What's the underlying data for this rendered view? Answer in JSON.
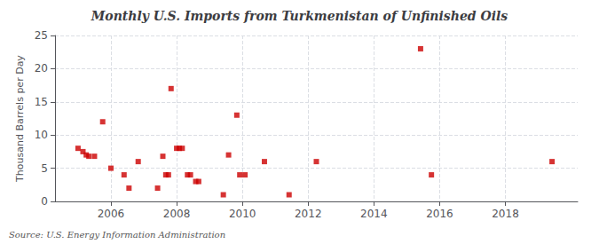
{
  "chart_data": {
    "type": "scatter",
    "title": "Monthly U.S. Imports from Turkmenistan of Unfinished Oils",
    "ylabel": "Thousand Barrels per Day",
    "annotation": "Source: U.S. Energy Information Administration",
    "x": [
      2005.0,
      2005.15,
      2005.25,
      2005.33,
      2005.5,
      2005.75,
      2006.0,
      2006.4,
      2006.55,
      2006.83,
      2007.42,
      2007.58,
      2007.67,
      2007.75,
      2007.83,
      2008.0,
      2008.08,
      2008.17,
      2008.33,
      2008.42,
      2008.58,
      2008.67,
      2009.42,
      2009.58,
      2009.83,
      2009.92,
      2010.08,
      2010.67,
      2011.42,
      2012.25,
      2015.42,
      2015.75,
      2019.42
    ],
    "values": [
      8.0,
      7.5,
      7.0,
      6.8,
      6.8,
      12.0,
      5.0,
      4.0,
      2.0,
      6.0,
      2.0,
      6.8,
      4.0,
      4.0,
      17.0,
      8.0,
      8.0,
      8.0,
      4.0,
      4.0,
      3.0,
      3.0,
      1.0,
      7.0,
      13.0,
      4.0,
      4.0,
      6.0,
      1.0,
      6.0,
      23.0,
      4.0,
      6.0
    ],
    "color": "#cc0000",
    "marker": "square",
    "xlim": [
      2004.3,
      2020.2
    ],
    "xticks": [
      2006,
      2008,
      2010,
      2012,
      2014,
      2016,
      2018
    ],
    "ylim": [
      0,
      25
    ],
    "yticks": [
      0,
      5,
      10,
      15,
      20,
      25
    ],
    "grid": true
  }
}
